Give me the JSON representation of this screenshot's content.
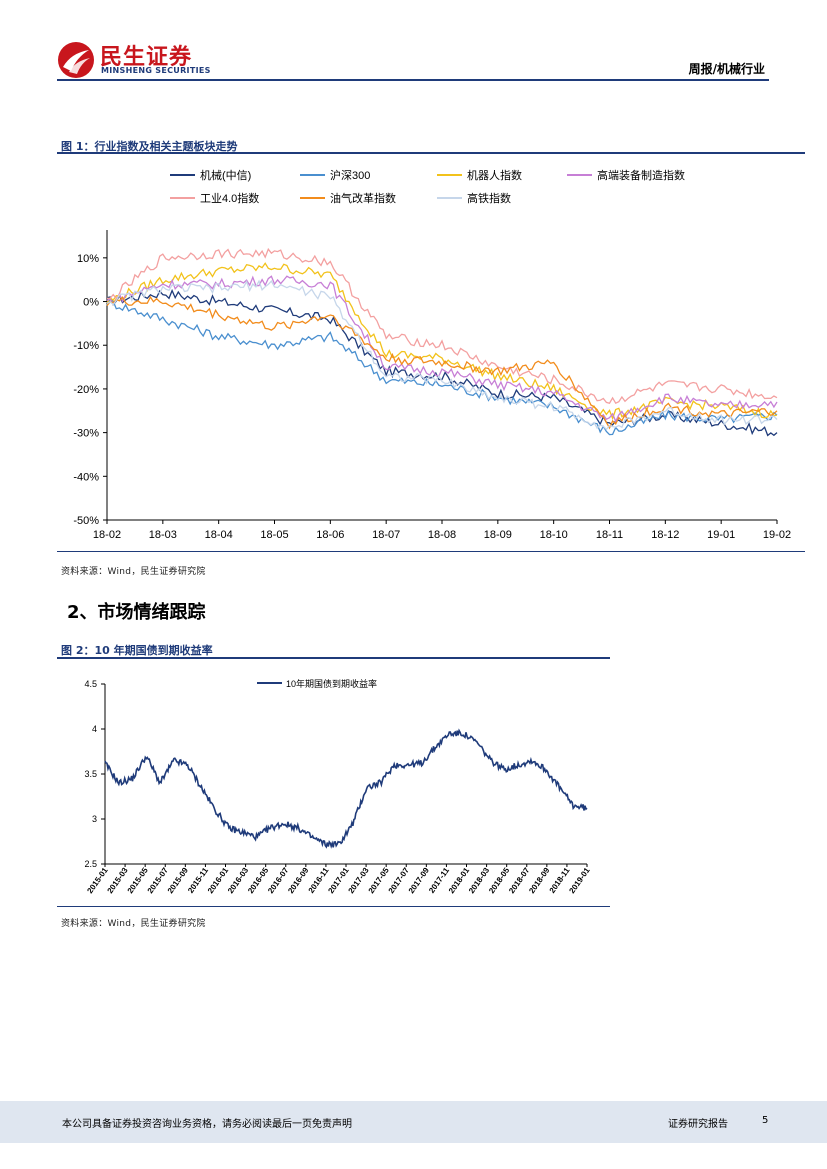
{
  "header": {
    "logo_cn": "民生证券",
    "logo_en": "MINSHENG SECURITIES",
    "report_type": "周报/机械行业"
  },
  "figure1": {
    "title": "图 1：行业指数及相关主题板块走势",
    "source": "资料来源：Wind，民生证券研究院",
    "chart_data": {
      "type": "line",
      "x": [
        "18-02",
        "18-03",
        "18-04",
        "18-05",
        "18-06",
        "18-07",
        "18-08",
        "18-09",
        "18-10",
        "18-11",
        "18-12",
        "19-01",
        "19-02"
      ],
      "x_tick_labels": [
        "18-02",
        "18-03",
        "18-04",
        "18-05",
        "18-06",
        "18-07",
        "18-08",
        "18-09",
        "18-10",
        "18-11",
        "18-12",
        "19-01",
        "19-02"
      ],
      "y_tick_labels": [
        "10%",
        "0%",
        "-10%",
        "-20%",
        "-30%",
        "-40%",
        "-50%"
      ],
      "ylim": [
        -50,
        15
      ],
      "grid": false,
      "legend_position": "top",
      "series": [
        {
          "name": "机械(中信)",
          "color": "#1f3b7a",
          "values": [
            0,
            2,
            0,
            -2,
            -4,
            -16,
            -17,
            -21,
            -22,
            -28,
            -26,
            -28,
            -30
          ]
        },
        {
          "name": "沪深300",
          "color": "#4a8fcf",
          "values": [
            0,
            -4,
            -8,
            -10,
            -8,
            -18,
            -19,
            -22,
            -24,
            -30,
            -26,
            -27,
            -26
          ]
        },
        {
          "name": "机器人指数",
          "color": "#f2c21b",
          "values": [
            0,
            5,
            7,
            8,
            6,
            -12,
            -13,
            -17,
            -20,
            -26,
            -23,
            -24,
            -26
          ]
        },
        {
          "name": "高端装备制造指数",
          "color": "#c77fd6",
          "values": [
            0,
            4,
            4,
            5,
            4,
            -15,
            -16,
            -19,
            -21,
            -27,
            -22,
            -24,
            -23
          ]
        },
        {
          "name": "工业4.0指数",
          "color": "#f3a0a0",
          "values": [
            0,
            10,
            11,
            11,
            9,
            -8,
            -10,
            -15,
            -18,
            -23,
            -19,
            -20,
            -22
          ]
        },
        {
          "name": "油气改革指数",
          "color": "#f28c1c",
          "values": [
            0,
            0,
            -3,
            -6,
            -3,
            -13,
            -14,
            -16,
            -14,
            -28,
            -24,
            -26,
            -25
          ]
        },
        {
          "name": "高铁指数",
          "color": "#c6d6ea",
          "values": [
            0,
            3,
            3,
            4,
            1,
            -17,
            -18,
            -22,
            -24,
            -29,
            -25,
            -27,
            -27
          ]
        }
      ]
    }
  },
  "section": {
    "title": "2、市场情绪跟踪"
  },
  "figure2": {
    "title": "图 2：10 年期国债到期收益率",
    "source": "资料来源：Wind，民生证券研究院",
    "chart_data": {
      "type": "line",
      "x_tick_labels": [
        "2015-01",
        "2015-03",
        "2015-05",
        "2015-07",
        "2015-09",
        "2015-11",
        "2016-01",
        "2016-03",
        "2016-05",
        "2016-07",
        "2016-09",
        "2016-11",
        "2017-01",
        "2017-03",
        "2017-05",
        "2017-07",
        "2017-09",
        "2017-11",
        "2018-01",
        "2018-03",
        "2018-05",
        "2018-07",
        "2018-09",
        "2018-11",
        "2019-01"
      ],
      "y_tick_labels": [
        "4.5",
        "4",
        "3.5",
        "3",
        "2.5"
      ],
      "ylim": [
        2.5,
        4.5
      ],
      "grid": false,
      "legend_position": "top",
      "series": [
        {
          "name": "10年期国债到期收益率",
          "color": "#1f3b7a",
          "values": [
            3.62,
            3.4,
            3.45,
            3.7,
            3.4,
            3.65,
            3.6,
            3.35,
            3.1,
            2.9,
            2.85,
            2.8,
            2.9,
            2.95,
            2.9,
            2.8,
            2.72,
            2.72,
            2.95,
            3.35,
            3.4,
            3.6,
            3.6,
            3.62,
            3.8,
            3.95,
            3.95,
            3.85,
            3.65,
            3.55,
            3.6,
            3.65,
            3.55,
            3.35,
            3.15,
            3.12
          ]
        }
      ]
    }
  },
  "footer": {
    "disclaimer": "本公司具备证券投资咨询业务资格，请务必阅读最后一页免责声明",
    "doc_type": "证券研究报告",
    "page_number": "5"
  }
}
